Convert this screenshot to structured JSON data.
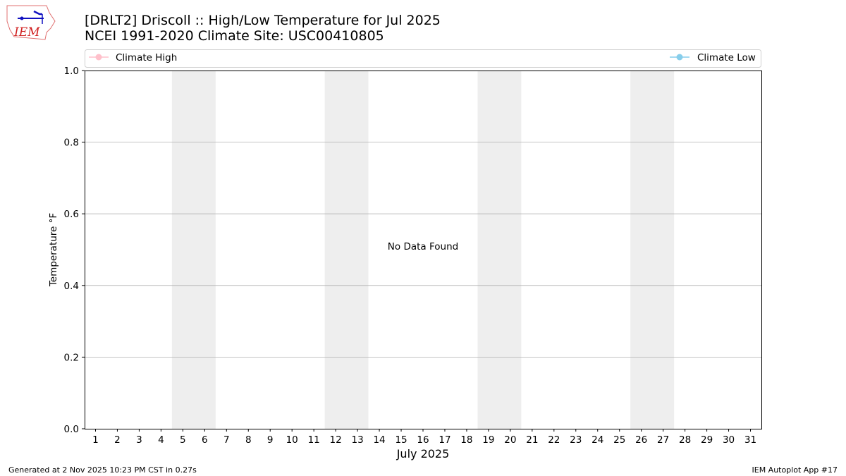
{
  "logo_text": "IEM",
  "title_line1": "[DRLT2] Driscoll :: High/Low Temperature for Jul 2025",
  "title_line2": "NCEI 1991-2020 Climate Site: USC00410805",
  "footer_left": "Generated at 2 Nov 2025 10:23 PM CST in 0.27s",
  "footer_right": "IEM Autoplot App #17",
  "colors": {
    "climate_high": "#ffc0cb",
    "climate_low": "#87ceeb",
    "weekend_shade": "#eeeeee",
    "grid": "#b0b0b0"
  },
  "chart_data": {
    "type": "line",
    "xlabel": "July 2025",
    "ylabel": "Temperature °F",
    "xlim": [
      0.5,
      31.5
    ],
    "ylim": [
      0,
      1
    ],
    "x_ticks": [
      1,
      2,
      3,
      4,
      5,
      6,
      7,
      8,
      9,
      10,
      11,
      12,
      13,
      14,
      15,
      16,
      17,
      18,
      19,
      20,
      21,
      22,
      23,
      24,
      25,
      26,
      27,
      28,
      29,
      30,
      31
    ],
    "y_ticks": [
      "0.0",
      "0.2",
      "0.4",
      "0.6",
      "0.8",
      "1.0"
    ],
    "grid": "horizontal",
    "weekend_bands": [
      [
        4.5,
        6.5
      ],
      [
        11.5,
        13.5
      ],
      [
        18.5,
        20.5
      ],
      [
        25.5,
        27.5
      ]
    ],
    "annotation": "No Data Found",
    "legend_placement": "top",
    "series": [
      {
        "name": "Climate High",
        "values": []
      },
      {
        "name": "Climate Low",
        "values": []
      }
    ]
  }
}
